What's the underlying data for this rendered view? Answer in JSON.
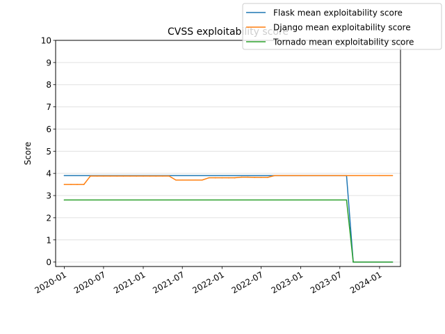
{
  "chart_data": {
    "type": "line",
    "title": "CVSS exploitability score",
    "xlabel": "",
    "ylabel": "Score",
    "ylim": [
      -0.2,
      10
    ],
    "yticks": [
      0,
      1,
      2,
      3,
      4,
      5,
      6,
      7,
      8,
      9,
      10
    ],
    "xlim": [
      "2019-11-22",
      "2024-04-07"
    ],
    "xticks": [
      {
        "date": "2020-01-01",
        "label": "2020-01"
      },
      {
        "date": "2020-07-01",
        "label": "2020-07"
      },
      {
        "date": "2021-01-01",
        "label": "2021-01"
      },
      {
        "date": "2021-07-01",
        "label": "2021-07"
      },
      {
        "date": "2022-01-01",
        "label": "2022-01"
      },
      {
        "date": "2022-07-01",
        "label": "2022-07"
      },
      {
        "date": "2023-01-01",
        "label": "2023-01"
      },
      {
        "date": "2023-07-01",
        "label": "2023-07"
      },
      {
        "date": "2024-01-01",
        "label": "2024-01"
      }
    ],
    "grid": "horizontal",
    "legend_position": "top-right",
    "series": [
      {
        "name": "Flask mean exploitability score",
        "color": "#1f77b4",
        "points": [
          [
            "2020-01-01",
            3.9
          ],
          [
            "2023-08-01",
            3.9
          ],
          [
            "2023-09-01",
            0.0
          ],
          [
            "2024-03-01",
            0.0
          ]
        ]
      },
      {
        "name": "Django mean exploitability score",
        "color": "#ff7f0e",
        "points": [
          [
            "2020-01-01",
            3.5
          ],
          [
            "2020-02-01",
            3.5
          ],
          [
            "2020-03-01",
            3.5
          ],
          [
            "2020-04-01",
            3.5
          ],
          [
            "2020-05-01",
            3.88
          ],
          [
            "2020-06-01",
            3.88
          ],
          [
            "2020-07-01",
            3.88
          ],
          [
            "2020-08-01",
            3.88
          ],
          [
            "2020-09-01",
            3.88
          ],
          [
            "2020-10-01",
            3.88
          ],
          [
            "2020-11-01",
            3.88
          ],
          [
            "2020-12-01",
            3.88
          ],
          [
            "2021-01-01",
            3.88
          ],
          [
            "2021-02-01",
            3.88
          ],
          [
            "2021-03-01",
            3.88
          ],
          [
            "2021-04-01",
            3.88
          ],
          [
            "2021-05-01",
            3.88
          ],
          [
            "2021-06-01",
            3.7
          ],
          [
            "2021-07-01",
            3.7
          ],
          [
            "2021-08-01",
            3.7
          ],
          [
            "2021-09-01",
            3.7
          ],
          [
            "2021-10-01",
            3.7
          ],
          [
            "2021-11-01",
            3.8
          ],
          [
            "2021-12-01",
            3.8
          ],
          [
            "2022-01-01",
            3.8
          ],
          [
            "2022-02-01",
            3.8
          ],
          [
            "2022-03-01",
            3.8
          ],
          [
            "2022-04-01",
            3.83
          ],
          [
            "2022-05-01",
            3.83
          ],
          [
            "2022-06-01",
            3.82
          ],
          [
            "2022-07-01",
            3.82
          ],
          [
            "2022-08-01",
            3.82
          ],
          [
            "2022-09-01",
            3.9
          ],
          [
            "2023-01-01",
            3.9
          ],
          [
            "2023-07-01",
            3.9
          ],
          [
            "2024-01-01",
            3.9
          ],
          [
            "2024-03-01",
            3.9
          ]
        ]
      },
      {
        "name": "Tornado mean exploitability score",
        "color": "#2ca02c",
        "points": [
          [
            "2020-01-01",
            2.8
          ],
          [
            "2023-08-01",
            2.8
          ],
          [
            "2023-09-01",
            0.0
          ],
          [
            "2024-03-01",
            0.0
          ]
        ]
      }
    ]
  }
}
